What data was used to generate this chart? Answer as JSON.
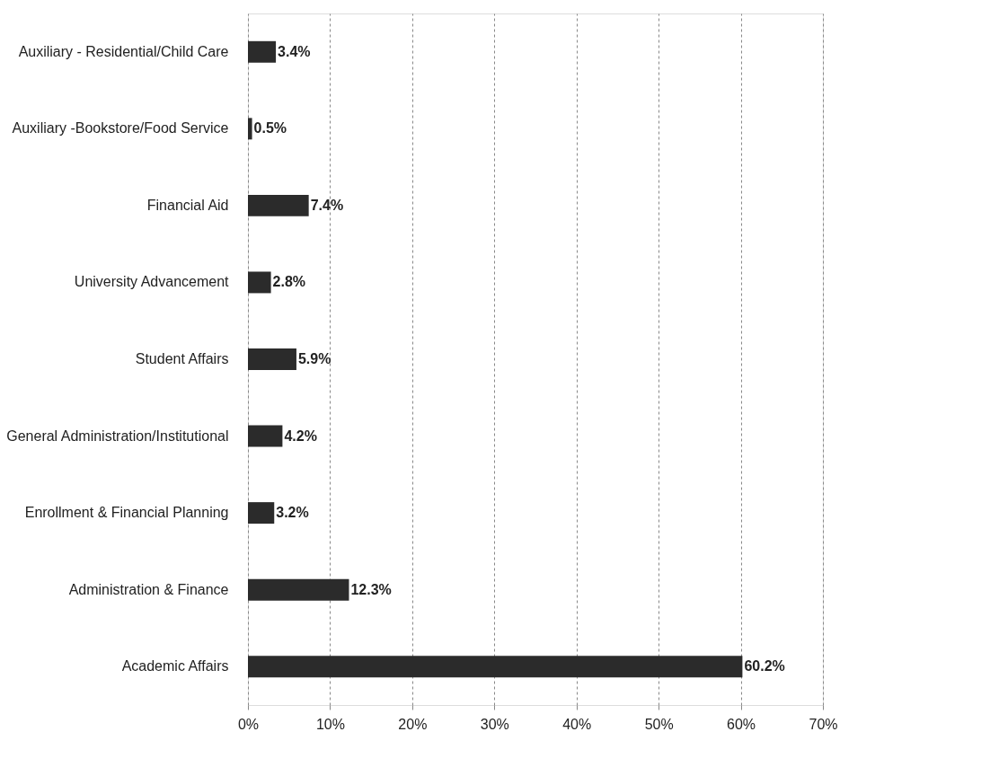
{
  "chart_data": {
    "type": "bar",
    "orientation": "horizontal",
    "categories": [
      "Auxiliary - Residential/Child Care",
      "Auxiliary -Bookstore/Food Service",
      "Financial Aid",
      "University Advancement",
      "Student Affairs",
      "General Administration/Institutional",
      "Enrollment & Financial Planning",
      "Administration & Finance",
      "Academic Affairs"
    ],
    "values": [
      3.4,
      0.5,
      7.4,
      2.8,
      5.9,
      4.2,
      3.2,
      12.3,
      60.2
    ],
    "value_labels": [
      "3.4%",
      "0.5%",
      "7.4%",
      "2.8%",
      "5.9%",
      "4.2%",
      "3.2%",
      "12.3%",
      "60.2%"
    ],
    "color": "#2b2b2b",
    "xlim": [
      0,
      70
    ],
    "xticks": [
      {
        "value": 0,
        "label": "0%"
      },
      {
        "value": 10,
        "label": "10%"
      },
      {
        "value": 20,
        "label": "20%"
      },
      {
        "value": 30,
        "label": "30%"
      },
      {
        "value": 40,
        "label": "40%"
      },
      {
        "value": 50,
        "label": "50%"
      },
      {
        "value": 60,
        "label": "60%"
      },
      {
        "value": 70,
        "label": "70%"
      }
    ],
    "grid": "x"
  }
}
